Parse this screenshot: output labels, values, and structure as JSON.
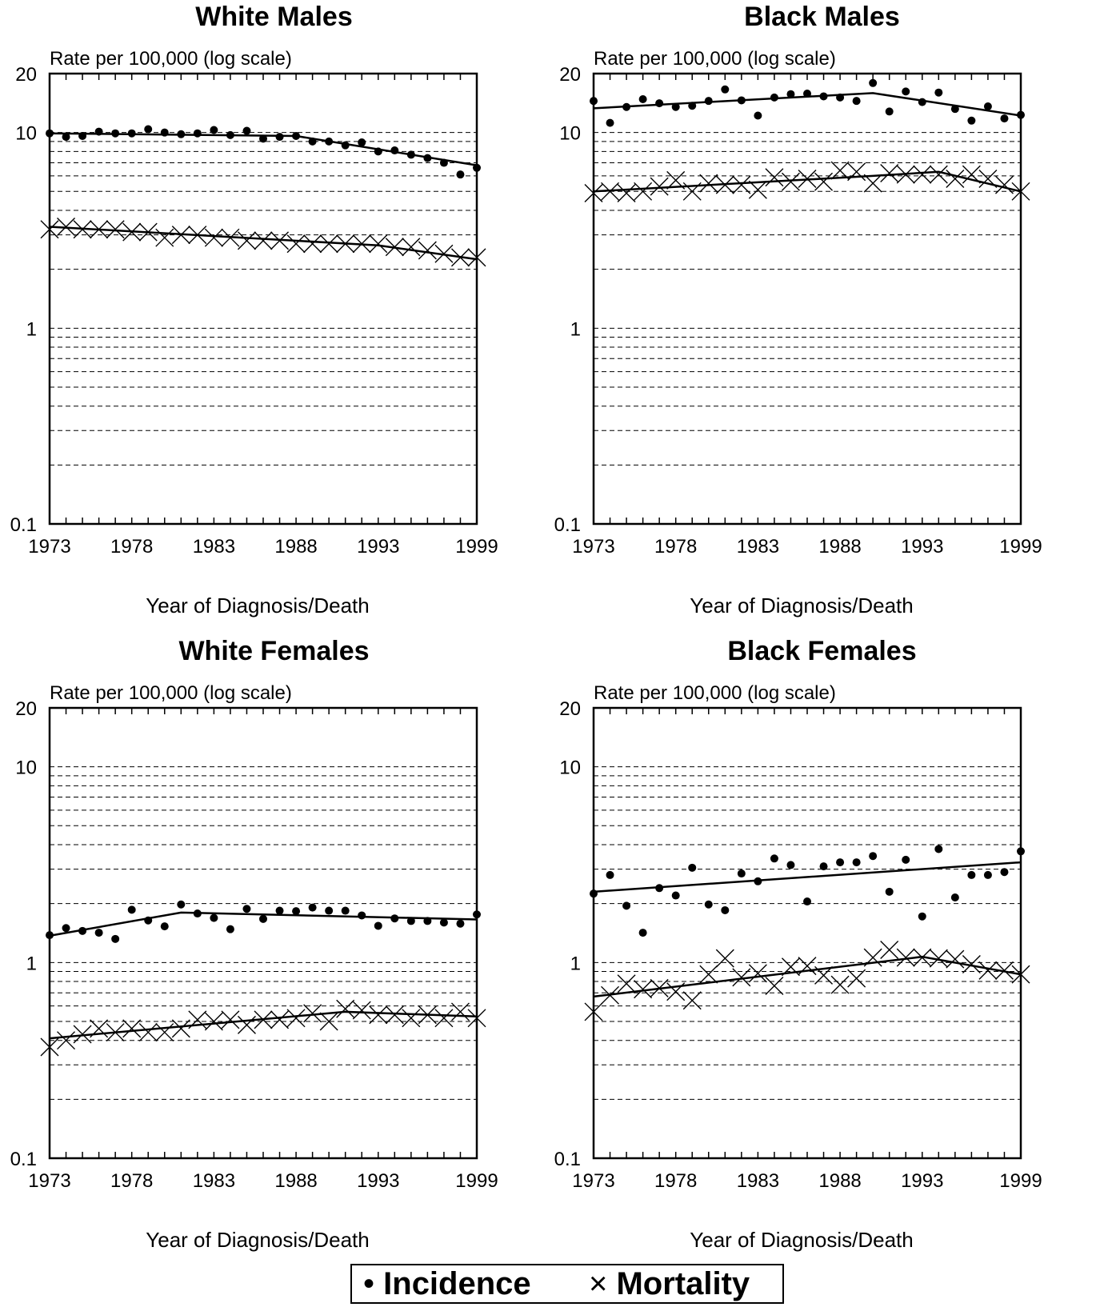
{
  "legend": {
    "incidence_symbol": "•",
    "incidence_label": "Incidence",
    "mortality_symbol": "×",
    "mortality_label": "Mortality"
  },
  "chart_data": [
    {
      "type": "scatter",
      "title": "White Males",
      "ylabel": "Rate per 100,000 (log scale)",
      "xlabel": "Year of Diagnosis/Death",
      "yscale": "log",
      "ylim": [
        0.1,
        20
      ],
      "xlim": [
        1973,
        1999
      ],
      "xticks": [
        "1973",
        "1978",
        "1983",
        "1988",
        "1993",
        "1999"
      ],
      "yticks": [
        "0.1",
        "1",
        "10",
        "20"
      ],
      "grid": "dashed horizontal",
      "series": [
        {
          "name": "Incidence",
          "x": [
            1973,
            1974,
            1975,
            1976,
            1977,
            1978,
            1979,
            1980,
            1981,
            1982,
            1983,
            1984,
            1985,
            1986,
            1987,
            1988,
            1989,
            1990,
            1991,
            1992,
            1993,
            1994,
            1995,
            1996,
            1997,
            1998,
            1999
          ],
          "values": [
            9.9,
            9.5,
            9.6,
            10.1,
            9.9,
            9.9,
            10.4,
            10.0,
            9.8,
            9.9,
            10.3,
            9.7,
            10.2,
            9.3,
            9.5,
            9.6,
            9.0,
            9.0,
            8.6,
            8.9,
            8.0,
            8.1,
            7.7,
            7.4,
            7.0,
            6.1,
            6.6
          ],
          "trend": [
            [
              1973,
              9.9
            ],
            [
              1988,
              9.6
            ],
            [
              1999,
              6.8
            ]
          ]
        },
        {
          "name": "Mortality",
          "x": [
            1973,
            1974,
            1975,
            1976,
            1977,
            1978,
            1979,
            1980,
            1981,
            1982,
            1983,
            1984,
            1985,
            1986,
            1987,
            1988,
            1989,
            1990,
            1991,
            1992,
            1993,
            1994,
            1995,
            1996,
            1997,
            1998,
            1999
          ],
          "values": [
            3.2,
            3.3,
            3.2,
            3.2,
            3.2,
            3.1,
            3.1,
            2.9,
            3.0,
            3.0,
            2.9,
            2.9,
            2.8,
            2.8,
            2.8,
            2.7,
            2.7,
            2.7,
            2.7,
            2.7,
            2.7,
            2.6,
            2.6,
            2.5,
            2.4,
            2.3,
            2.3
          ],
          "trend": [
            [
              1973,
              3.3
            ],
            [
              1993,
              2.65
            ],
            [
              1999,
              2.25
            ]
          ]
        }
      ]
    },
    {
      "type": "scatter",
      "title": "Black Males",
      "ylabel": "Rate per 100,000 (log scale)",
      "xlabel": "Year of Diagnosis/Death",
      "yscale": "log",
      "ylim": [
        0.1,
        20
      ],
      "xlim": [
        1973,
        1999
      ],
      "xticks": [
        "1973",
        "1978",
        "1983",
        "1988",
        "1993",
        "1999"
      ],
      "yticks": [
        "0.1",
        "1",
        "10",
        "20"
      ],
      "grid": "dashed horizontal",
      "series": [
        {
          "name": "Incidence",
          "x": [
            1973,
            1974,
            1975,
            1976,
            1977,
            1978,
            1979,
            1980,
            1981,
            1982,
            1983,
            1984,
            1985,
            1986,
            1987,
            1988,
            1989,
            1990,
            1991,
            1992,
            1993,
            1994,
            1995,
            1996,
            1997,
            1998,
            1999
          ],
          "values": [
            14.5,
            11.2,
            13.5,
            14.8,
            14.1,
            13.5,
            13.7,
            14.5,
            16.6,
            14.6,
            12.2,
            15.1,
            15.7,
            15.8,
            15.3,
            15.1,
            14.5,
            17.9,
            12.8,
            16.2,
            14.3,
            16.0,
            13.2,
            11.5,
            13.6,
            11.8,
            12.3
          ],
          "trend": [
            [
              1973,
              13.3
            ],
            [
              1990,
              15.9
            ],
            [
              1999,
              12.2
            ]
          ]
        },
        {
          "name": "Mortality",
          "x": [
            1973,
            1974,
            1975,
            1976,
            1977,
            1978,
            1979,
            1980,
            1981,
            1982,
            1983,
            1984,
            1985,
            1986,
            1987,
            1988,
            1989,
            1990,
            1991,
            1992,
            1993,
            1994,
            1995,
            1996,
            1997,
            1998,
            1999
          ],
          "values": [
            4.9,
            5.0,
            4.9,
            5.0,
            5.3,
            5.7,
            5.0,
            5.5,
            5.4,
            5.4,
            5.1,
            5.9,
            5.6,
            5.8,
            5.6,
            6.4,
            6.3,
            5.5,
            6.2,
            6.1,
            6.1,
            6.1,
            5.8,
            6.1,
            5.8,
            5.4,
            5.0
          ],
          "trend": [
            [
              1973,
              5.0
            ],
            [
              1990,
              6.0
            ],
            [
              1994,
              6.3
            ],
            [
              1999,
              5.0
            ]
          ]
        }
      ]
    },
    {
      "type": "scatter",
      "title": "White Females",
      "ylabel": "Rate per 100,000 (log scale)",
      "xlabel": "Year of Diagnosis/Death",
      "yscale": "log",
      "ylim": [
        0.1,
        20
      ],
      "xlim": [
        1973,
        1999
      ],
      "xticks": [
        "1973",
        "1978",
        "1983",
        "1988",
        "1993",
        "1999"
      ],
      "yticks": [
        "0.1",
        "1",
        "10",
        "20"
      ],
      "grid": "dashed horizontal",
      "series": [
        {
          "name": "Incidence",
          "x": [
            1973,
            1974,
            1975,
            1976,
            1977,
            1978,
            1979,
            1980,
            1981,
            1982,
            1983,
            1984,
            1985,
            1986,
            1987,
            1988,
            1989,
            1990,
            1991,
            1992,
            1993,
            1994,
            1995,
            1996,
            1997,
            1998,
            1999
          ],
          "values": [
            1.38,
            1.5,
            1.45,
            1.42,
            1.32,
            1.86,
            1.64,
            1.53,
            1.98,
            1.78,
            1.69,
            1.48,
            1.88,
            1.67,
            1.84,
            1.83,
            1.91,
            1.84,
            1.84,
            1.74,
            1.54,
            1.68,
            1.63,
            1.63,
            1.6,
            1.58,
            1.76
          ],
          "trend": [
            [
              1973,
              1.37
            ],
            [
              1981,
              1.8
            ],
            [
              1999,
              1.66
            ]
          ]
        },
        {
          "name": "Mortality",
          "x": [
            1973,
            1974,
            1975,
            1976,
            1977,
            1978,
            1979,
            1980,
            1981,
            1982,
            1983,
            1984,
            1985,
            1986,
            1987,
            1988,
            1989,
            1990,
            1991,
            1992,
            1993,
            1994,
            1995,
            1996,
            1997,
            1998,
            1999
          ],
          "values": [
            0.37,
            0.4,
            0.43,
            0.46,
            0.44,
            0.46,
            0.44,
            0.44,
            0.46,
            0.51,
            0.5,
            0.51,
            0.48,
            0.51,
            0.51,
            0.52,
            0.55,
            0.5,
            0.58,
            0.57,
            0.54,
            0.54,
            0.52,
            0.54,
            0.52,
            0.56,
            0.52
          ],
          "trend": [
            [
              1973,
              0.41
            ],
            [
              1991,
              0.56
            ],
            [
              1999,
              0.53
            ]
          ]
        }
      ]
    },
    {
      "type": "scatter",
      "title": "Black Females",
      "ylabel": "Rate per 100,000 (log scale)",
      "xlabel": "Year of Diagnosis/Death",
      "yscale": "log",
      "ylim": [
        0.1,
        20
      ],
      "xlim": [
        1973,
        1999
      ],
      "xticks": [
        "1973",
        "1978",
        "1983",
        "1988",
        "1993",
        "1999"
      ],
      "yticks": [
        "0.1",
        "1",
        "10",
        "20"
      ],
      "grid": "dashed horizontal",
      "series": [
        {
          "name": "Incidence",
          "x": [
            1973,
            1974,
            1975,
            1976,
            1977,
            1978,
            1979,
            1980,
            1981,
            1982,
            1983,
            1984,
            1985,
            1986,
            1987,
            1988,
            1989,
            1990,
            1991,
            1992,
            1993,
            1994,
            1995,
            1996,
            1997,
            1998,
            1999
          ],
          "values": [
            2.25,
            2.8,
            1.95,
            1.42,
            2.4,
            2.2,
            3.05,
            1.98,
            1.85,
            2.85,
            2.6,
            3.4,
            3.15,
            2.05,
            3.1,
            3.25,
            3.25,
            3.5,
            2.3,
            3.35,
            1.72,
            3.8,
            2.15,
            2.8,
            2.8,
            2.9,
            3.7
          ],
          "trend": [
            [
              1973,
              2.3
            ],
            [
              1999,
              3.25
            ]
          ]
        },
        {
          "name": "Mortality",
          "x": [
            1973,
            1974,
            1975,
            1976,
            1977,
            1978,
            1979,
            1980,
            1981,
            1982,
            1983,
            1984,
            1985,
            1986,
            1987,
            1988,
            1989,
            1990,
            1991,
            1992,
            1993,
            1994,
            1995,
            1996,
            1997,
            1998,
            1999
          ],
          "values": [
            0.56,
            0.68,
            0.78,
            0.73,
            0.74,
            0.71,
            0.64,
            0.87,
            1.05,
            0.84,
            0.88,
            0.76,
            0.95,
            0.96,
            0.86,
            0.77,
            0.83,
            1.06,
            1.16,
            1.06,
            1.06,
            1.05,
            1.04,
            0.98,
            0.91,
            0.91,
            0.87
          ],
          "trend": [
            [
              1973,
              0.67
            ],
            [
              1993,
              1.07
            ],
            [
              1999,
              0.87
            ]
          ]
        }
      ]
    }
  ]
}
